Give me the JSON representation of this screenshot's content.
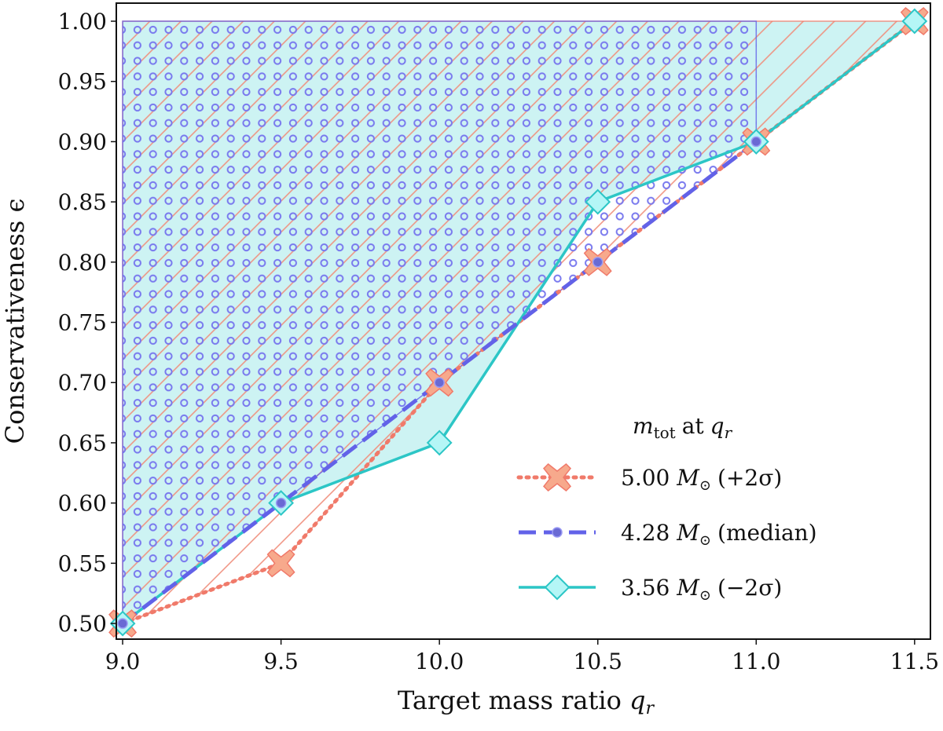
{
  "chart_data": {
    "type": "line",
    "xlabel": "Target mass ratio",
    "xlabel_symbol": "q",
    "xlabel_sub": "r",
    "ylabel": "Conservativeness ϵ",
    "xlim": [
      8.98,
      11.55
    ],
    "ylim": [
      0.487,
      1.015
    ],
    "xticks": [
      9.0,
      9.5,
      10.0,
      10.5,
      11.0,
      11.5
    ],
    "xtick_labels": [
      "9.0",
      "9.5",
      "10.0",
      "10.5",
      "11.0",
      "11.5"
    ],
    "yticks": [
      0.5,
      0.55,
      0.6,
      0.65,
      0.7,
      0.75,
      0.8,
      0.85,
      0.9,
      0.95,
      1.0
    ],
    "ytick_labels": [
      "0.50",
      "0.55",
      "0.60",
      "0.65",
      "0.70",
      "0.75",
      "0.80",
      "0.85",
      "0.90",
      "0.95",
      "1.00"
    ],
    "legend": {
      "title_sym": "m",
      "title_sub": "tot",
      "title_at": "at",
      "title_q": "q",
      "title_qsub": "r",
      "placement": "lower-right"
    },
    "series": [
      {
        "name": "+2sigma",
        "label_mass": "5.00",
        "label_unit": "M",
        "label_note": "(+2σ)",
        "style": "dotted",
        "marker": "X",
        "color": "#f07a6a",
        "marker_color": "#f7a98c",
        "hatch": "diagonal",
        "x": [
          9.0,
          9.5,
          10.0,
          10.5,
          11.0,
          11.5
        ],
        "y": [
          0.5,
          0.55,
          0.7,
          0.8,
          0.9,
          1.0
        ]
      },
      {
        "name": "median",
        "label_mass": "4.28",
        "label_unit": "M",
        "label_note": "(median)",
        "style": "dashed",
        "marker": "dot",
        "color": "#6262e8",
        "marker_color": "#6262e8",
        "hatch": "circles",
        "x": [
          9.0,
          9.5,
          10.0,
          10.5,
          11.0
        ],
        "y": [
          0.5,
          0.6,
          0.7,
          0.8,
          0.9
        ]
      },
      {
        "name": "-2sigma",
        "label_mass": "3.56",
        "label_unit": "M",
        "label_note": "(−2σ)",
        "style": "solid",
        "marker": "diamond",
        "color": "#2cc6c6",
        "marker_color": "#b4f6f6",
        "hatch": "fill",
        "x": [
          9.0,
          9.5,
          10.0,
          10.5,
          11.0,
          11.5
        ],
        "y": [
          0.5,
          0.6,
          0.65,
          0.85,
          0.9,
          1.0
        ]
      }
    ]
  }
}
